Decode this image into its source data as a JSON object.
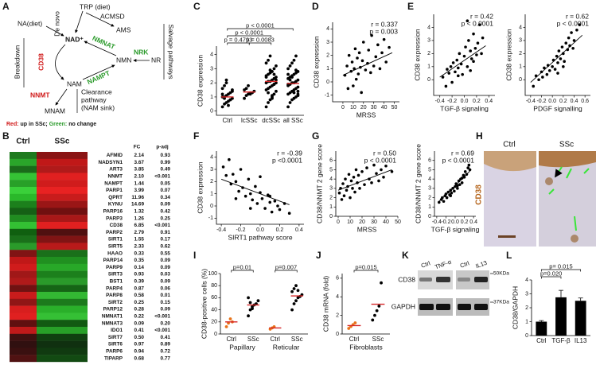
{
  "panel_labels": [
    "A",
    "B",
    "C",
    "D",
    "E",
    "F",
    "G",
    "H",
    "I",
    "J",
    "K",
    "L"
  ],
  "diagram": {
    "trp": "TRP (diet)",
    "acmsd": "ACMSD",
    "ams": "AMS",
    "de_novo": "De novo",
    "na": "NA(diet)",
    "nad": "NAD⁺",
    "nmnat": "NMNAT",
    "nrk": "NRK",
    "nmn": "NMN",
    "nr": "NR",
    "salvage": "Salvage pathways",
    "nampt": "NAMPT",
    "cd38": "CD38",
    "breakdown": "Breakdown",
    "nam": "NAM",
    "nnmt": "NNMT",
    "mnam": "MNAM",
    "clearance": [
      "Clearance",
      "pathway",
      "(NAM sink)"
    ],
    "legend": [
      "Red:",
      " up in SSc; ",
      "Green:",
      " no change"
    ]
  },
  "heatmap": {
    "columns": [
      "Ctrl",
      "SSc"
    ],
    "stat_headers": [
      "FC",
      "p-adj"
    ],
    "rows": [
      {
        "gene": "AFMID",
        "fc": "2.14",
        "p": "0.93",
        "ctrl_color": "#1e7a1e",
        "ssc_color": "#8a1414"
      },
      {
        "gene": "NADSYN1",
        "fc": "3.67",
        "p": "0.99",
        "ctrl_color": "#2aa52a",
        "ssc_color": "#c01818"
      },
      {
        "gene": "ART3",
        "fc": "3.85",
        "p": "0.49",
        "ctrl_color": "#1a6b1a",
        "ssc_color": "#b01a1a"
      },
      {
        "gene": "NNMT",
        "fc": "2.10",
        "p": "<0.001",
        "ctrl_color": "#35c235",
        "ssc_color": "#e02020"
      },
      {
        "gene": "NAMPT",
        "fc": "1.44",
        "p": "0.05",
        "ctrl_color": "#28a028",
        "ssc_color": "#d01c1c"
      },
      {
        "gene": "PARP1",
        "fc": "3.99",
        "p": "0.07",
        "ctrl_color": "#3ad03a",
        "ssc_color": "#e82222"
      },
      {
        "gene": "QPRT",
        "fc": "11.96",
        "p": "0.34",
        "ctrl_color": "#2ab82a",
        "ssc_color": "#c81c1c"
      },
      {
        "gene": "KYNU",
        "fc": "14.69",
        "p": "0.09",
        "ctrl_color": "#1c801c",
        "ssc_color": "#9a1616"
      },
      {
        "gene": "PARP16",
        "fc": "1.32",
        "p": "0.42",
        "ctrl_color": "#156015",
        "ssc_color": "#701010"
      },
      {
        "gene": "PARP3",
        "fc": "1.26",
        "p": "0.25",
        "ctrl_color": "#208c20",
        "ssc_color": "#a81818"
      },
      {
        "gene": "CD38",
        "fc": "6.85",
        "p": "<0.001",
        "ctrl_color": "#33c033",
        "ssc_color": "#e02020"
      },
      {
        "gene": "PARP2",
        "fc": "2.79",
        "p": "0.91",
        "ctrl_color": "#106010",
        "ssc_color": "#501010"
      },
      {
        "gene": "SIRT1",
        "fc": "1.55",
        "p": "0.17",
        "ctrl_color": "#1a701a",
        "ssc_color": "#801414"
      },
      {
        "gene": "SIRT5",
        "fc": "2.33",
        "p": "0.62",
        "ctrl_color": "#2a9a2a",
        "ssc_color": "#b81a1a"
      },
      {
        "gene": "HAAO",
        "fc": "0.33",
        "p": "0.55",
        "ctrl_color": "#801414",
        "ssc_color": "#1a701a"
      },
      {
        "gene": "PARP14",
        "fc": "0.35",
        "p": "0.09",
        "ctrl_color": "#c01818",
        "ssc_color": "#209020"
      },
      {
        "gene": "PARP9",
        "fc": "0.14",
        "p": "0.09",
        "ctrl_color": "#d01c1c",
        "ssc_color": "#28a828"
      },
      {
        "gene": "SIRT3",
        "fc": "0.93",
        "p": "0.03",
        "ctrl_color": "#a01818",
        "ssc_color": "#1c801c"
      },
      {
        "gene": "BST1",
        "fc": "0.39",
        "p": "0.09",
        "ctrl_color": "#b01a1a",
        "ssc_color": "#2a9a2a"
      },
      {
        "gene": "PARP4",
        "fc": "0.87",
        "p": "0.06",
        "ctrl_color": "#701212",
        "ssc_color": "#156515"
      },
      {
        "gene": "PARP8",
        "fc": "0.58",
        "p": "0.01",
        "ctrl_color": "#c81c1c",
        "ssc_color": "#33b833"
      },
      {
        "gene": "SIRT2",
        "fc": "0.25",
        "p": "0.15",
        "ctrl_color": "#901616",
        "ssc_color": "#1c7a1c"
      },
      {
        "gene": "PARP12",
        "fc": "0.28",
        "p": "0.09",
        "ctrl_color": "#d81e1e",
        "ssc_color": "#2ab02a"
      },
      {
        "gene": "NMNAT1",
        "fc": "0.22",
        "p": "<0.001",
        "ctrl_color": "#e02020",
        "ssc_color": "#35c035"
      },
      {
        "gene": "NMNAT3",
        "fc": "0.09",
        "p": "0.20",
        "ctrl_color": "#601010",
        "ssc_color": "#125a12"
      },
      {
        "gene": "IDO1",
        "fc": "0.41",
        "p": "<0.001",
        "ctrl_color": "#c01a1a",
        "ssc_color": "#28a028"
      },
      {
        "gene": "SIRT7",
        "fc": "0.50",
        "p": "0.41",
        "ctrl_color": "#401010",
        "ssc_color": "#104010"
      },
      {
        "gene": "SIRT6",
        "fc": "0.97",
        "p": "0.89",
        "ctrl_color": "#301010",
        "ssc_color": "#103010"
      },
      {
        "gene": "PARP6",
        "fc": "0.94",
        "p": "0.72",
        "ctrl_color": "#3a1010",
        "ssc_color": "#103a10"
      },
      {
        "gene": "TIPARP",
        "fc": "0.68",
        "p": "0.77",
        "ctrl_color": "#501212",
        "ssc_color": "#124a12"
      }
    ]
  },
  "histology": {
    "columns": [
      "Ctrl",
      "SSc"
    ],
    "stain": "CD38"
  },
  "blot": {
    "lanes": [
      "Ctrl",
      "TNF-α",
      "Ctrl",
      "IL13"
    ],
    "bands": [
      "CD38",
      "GAPDH"
    ],
    "markers": [
      "50KDa",
      "37KDa"
    ]
  },
  "chart_data": [
    {
      "type": "dot",
      "ylabel": "CD38 expression",
      "categories": [
        "Ctrl",
        "lcSSc",
        "dcSSc",
        "all SSc"
      ],
      "ylim": [
        -0.3,
        4.6
      ],
      "yticks": [
        0,
        1,
        2,
        3,
        4
      ],
      "color": "#000000",
      "mean_color": "#d62728",
      "points": [
        [
          0.3,
          0.5,
          0.6,
          0.7,
          0.8,
          0.9,
          1.0,
          1.0,
          1.1,
          1.2,
          1.3,
          1.4,
          1.6,
          1.8,
          2.0,
          0.4,
          0.8,
          1.5,
          1.2,
          0.9,
          2.2
        ],
        [
          0.9,
          1.1,
          1.2,
          1.3,
          1.3,
          1.4,
          1.5,
          1.6,
          1.8,
          1.2
        ],
        [
          0.3,
          0.6,
          0.8,
          1.0,
          1.2,
          1.4,
          1.5,
          1.6,
          1.7,
          1.8,
          1.9,
          2.0,
          2.0,
          2.1,
          2.1,
          2.2,
          2.3,
          2.4,
          2.5,
          2.6,
          2.7,
          2.8,
          3.0,
          3.2,
          3.4,
          3.6,
          3.9,
          1.1,
          1.9,
          2.2,
          2.4,
          1.3,
          2.9,
          0.9,
          2.6
        ],
        [
          0.3,
          0.6,
          0.8,
          0.9,
          1.0,
          1.1,
          1.2,
          1.3,
          1.4,
          1.5,
          1.6,
          1.7,
          1.8,
          1.9,
          2.0,
          2.0,
          2.1,
          2.2,
          2.3,
          2.4,
          2.5,
          2.6,
          2.7,
          2.8,
          3.0,
          3.2,
          3.4,
          3.6,
          3.9,
          1.2,
          1.9,
          2.2,
          2.4,
          1.3,
          2.9,
          1.4,
          2.6
        ]
      ],
      "means": [
        1.0,
        1.35,
        2.1,
        1.95
      ],
      "brackets": [
        {
          "label": "p = 0.4793",
          "from": 0,
          "to": 1
        },
        {
          "label": "p = 0.0083",
          "from": 1,
          "to": 2
        },
        {
          "label": "p < 0.0001",
          "from": 0,
          "to": 2
        },
        {
          "label": "p < 0.0001",
          "from": 0,
          "to": 3
        }
      ]
    },
    {
      "type": "scatter",
      "xlabel": "MRSS",
      "ylabel": "CD38 expression",
      "stats": [
        "r = 0.337",
        "p = 0.003"
      ],
      "xlim": [
        -10,
        55
      ],
      "xticks": [
        0,
        10,
        20,
        30,
        40,
        50
      ],
      "ylim": [
        -1.5,
        4.5
      ],
      "yticks": [
        -1,
        0,
        1,
        2,
        3,
        4
      ],
      "x": [
        2,
        4,
        5,
        6,
        8,
        9,
        10,
        11,
        12,
        13,
        14,
        15,
        16,
        17,
        18,
        19,
        20,
        22,
        24,
        25,
        27,
        28,
        30,
        32,
        34,
        36,
        38,
        40,
        42,
        45
      ],
      "y": [
        0.5,
        1.2,
        -0.5,
        2.0,
        0.8,
        1.5,
        -0.3,
        1.0,
        2.5,
        0.2,
        1.8,
        0.6,
        2.2,
        1.1,
        -0.8,
        1.6,
        3.0,
        0.9,
        1.4,
        2.4,
        0.7,
        3.5,
        1.2,
        1.9,
        2.8,
        1.0,
        2.2,
        3.2,
        1.5,
        2.6
      ],
      "fit": {
        "x": [
          0,
          48
        ],
        "y": [
          0.5,
          2.2
        ]
      }
    },
    {
      "type": "scatter",
      "xlabel": "TGF-β signaling",
      "ylabel": "CD38 expression",
      "stats": [
        "r = 0.42",
        "p < 0.0001"
      ],
      "xlim": [
        -0.5,
        0.5
      ],
      "xticks": [
        -0.4,
        -0.2,
        {
          "value": 0,
          "label": "0.0"
        },
        0.2,
        0.4
      ],
      "ylim": [
        -1.2,
        5
      ],
      "yticks": [
        0,
        1,
        2,
        3,
        4
      ],
      "x": [
        -0.35,
        -0.3,
        -0.28,
        -0.25,
        -0.22,
        -0.2,
        -0.18,
        -0.15,
        -0.12,
        -0.1,
        -0.08,
        -0.05,
        -0.03,
        0,
        0.02,
        0.05,
        0.07,
        0.1,
        0.12,
        0.15,
        0.18,
        0.2,
        0.22,
        0.25,
        0.28,
        0.3,
        -0.1,
        0.05,
        0.1,
        0.15
      ],
      "y": [
        0.2,
        -0.5,
        0.8,
        0.5,
        1.0,
        -0.2,
        1.3,
        0.6,
        1.5,
        0.9,
        2.0,
        1.2,
        0.4,
        1.8,
        2.5,
        1.0,
        3.0,
        2.2,
        1.6,
        3.5,
        2.4,
        1.9,
        2.8,
        4.2,
        2.0,
        3.2,
        0.3,
        4.5,
        0.7,
        1.4
      ],
      "fit": {
        "x": [
          -0.4,
          0.35
        ],
        "y": [
          0.2,
          2.6
        ]
      }
    },
    {
      "type": "scatter",
      "xlabel": "PDGF signalling",
      "ylabel": "CD38 expression",
      "stats": [
        "r = 0.62",
        "p < 0.0001"
      ],
      "xlim": [
        -0.5,
        0.7
      ],
      "xticks": [
        -0.4,
        -0.2,
        {
          "value": 0,
          "label": "0.0"
        },
        0.2,
        0.4,
        0.6
      ],
      "ylim": [
        -1.2,
        5
      ],
      "yticks": [
        0,
        1,
        2,
        3,
        4
      ],
      "x": [
        -0.35,
        -0.3,
        -0.25,
        -0.2,
        -0.18,
        -0.15,
        -0.1,
        -0.08,
        -0.05,
        0,
        0.02,
        0.05,
        0.08,
        0.1,
        0.12,
        0.15,
        0.18,
        0.2,
        0.22,
        0.25,
        0.28,
        0.3,
        0.32,
        0.35,
        0.38,
        0.4,
        0.45,
        0.5,
        0.1,
        0.2
      ],
      "y": [
        -0.5,
        0.3,
        0,
        0.6,
        0.2,
        0.9,
        0.4,
        1.1,
        0.7,
        1.0,
        1.5,
        0.8,
        1.8,
        1.3,
        2.2,
        1.6,
        2.5,
        2.0,
        1.4,
        2.8,
        2.3,
        3.2,
        2.6,
        3.6,
        2.4,
        3.0,
        3.8,
        4.2,
        0.5,
        1.0
      ],
      "fit": {
        "x": [
          -0.4,
          0.55
        ],
        "y": [
          -0.2,
          3.4
        ]
      }
    },
    {
      "type": "scatter",
      "xlabel": "SIRT1 pathway score",
      "ylabel": "CD38 expression",
      "stats": [
        "r = -0.39",
        "p <0.0001"
      ],
      "xlim": [
        -0.45,
        0.45
      ],
      "xticks": [
        -0.4,
        -0.2,
        {
          "value": 0,
          "label": "0.0"
        },
        0.2,
        0.4
      ],
      "ylim": [
        -1.5,
        4.5
      ],
      "yticks": [
        -1,
        0,
        1,
        2,
        3,
        4
      ],
      "x": [
        -0.38,
        -0.35,
        -0.32,
        -0.3,
        -0.28,
        -0.25,
        -0.22,
        -0.2,
        -0.18,
        -0.15,
        -0.12,
        -0.1,
        -0.08,
        -0.05,
        -0.03,
        0,
        0.02,
        0.05,
        0.08,
        0.1,
        0.12,
        0.15,
        0.18,
        0.2,
        0.25,
        0.3,
        -0.25,
        -0.1,
        0,
        0.1
      ],
      "y": [
        3.2,
        2.5,
        3.8,
        1.8,
        2.6,
        2.0,
        1.2,
        3.0,
        1.5,
        0.8,
        2.2,
        1.0,
        0.5,
        1.6,
        0.2,
        1.1,
        0.6,
        -0.2,
        0.9,
        0.3,
        -0.5,
        0.4,
        0.0,
        -0.3,
        0.2,
        -0.6,
        0.6,
        -0.2,
        2.4,
        0.8
      ],
      "fit": {
        "x": [
          -0.4,
          0.3
        ],
        "y": [
          2.2,
          0.1
        ]
      }
    },
    {
      "type": "scatter",
      "xlabel": "MRSS",
      "ylabel": "CD38/NNMT 2 gene score",
      "stats": [
        "r = 0.50",
        "p < 0.0001"
      ],
      "xlim": [
        -2,
        50
      ],
      "xticks": [
        0,
        10,
        20,
        30,
        40,
        50
      ],
      "ylim": [
        0,
        7
      ],
      "yticks": [
        0,
        1,
        2,
        3,
        4,
        5,
        6
      ],
      "x": [
        1,
        2,
        3,
        4,
        5,
        6,
        7,
        8,
        9,
        10,
        11,
        12,
        13,
        14,
        15,
        16,
        17,
        18,
        20,
        22,
        24,
        26,
        28,
        30,
        32,
        34,
        36,
        38,
        40,
        45
      ],
      "y": [
        2.5,
        3.0,
        1.8,
        3.5,
        2.2,
        4.0,
        2.8,
        3.2,
        4.5,
        2.0,
        3.8,
        3.0,
        4.2,
        2.6,
        5.0,
        3.6,
        4.4,
        3.0,
        4.8,
        3.4,
        5.2,
        4.0,
        3.6,
        5.5,
        4.6,
        3.8,
        5.0,
        4.2,
        5.4,
        4.8
      ],
      "fit": {
        "x": [
          0,
          45
        ],
        "y": [
          2.8,
          5.0
        ]
      }
    },
    {
      "type": "scatter",
      "xlabel": "TGF-β signaling",
      "ylabel": "CD38/NNMT 2 gene score",
      "stats": [
        "r = 0.69",
        "p < 0.0001"
      ],
      "xlim": [
        -0.45,
        0.45
      ],
      "xticks": [
        -0.4,
        -0.2,
        {
          "value": 0,
          "label": "0.0"
        },
        0.2,
        0.4
      ],
      "ylim": [
        0,
        7
      ],
      "yticks": [
        0,
        1,
        2,
        3,
        4,
        5,
        6
      ],
      "x": [
        -0.35,
        -0.3,
        -0.28,
        -0.25,
        -0.22,
        -0.2,
        -0.18,
        -0.15,
        -0.12,
        -0.1,
        -0.08,
        -0.05,
        -0.02,
        0,
        0.02,
        0.05,
        0.08,
        0.1,
        0.12,
        0.15,
        0.18,
        0.2,
        0.22,
        0.25,
        0.28,
        0.3,
        0.32,
        -0.1,
        0.05,
        0.15
      ],
      "y": [
        1.5,
        1.8,
        2.0,
        1.6,
        2.2,
        2.4,
        2.0,
        2.6,
        2.3,
        2.8,
        2.5,
        3.0,
        2.7,
        3.2,
        3.5,
        3.0,
        3.8,
        3.4,
        4.0,
        3.6,
        4.4,
        4.2,
        4.8,
        4.5,
        5.2,
        5.5,
        5.0,
        2.2,
        3.3,
        4.1
      ],
      "fit": {
        "x": [
          -0.35,
          0.35
        ],
        "y": [
          1.6,
          5.0
        ]
      }
    },
    {
      "type": "dot",
      "ylabel": "CD38-positive cells (%)",
      "categories": [
        "Ctrl",
        "SSc",
        "Ctrl",
        "SSc"
      ],
      "groups": [
        "Papillary",
        "Reticular"
      ],
      "ylim": [
        0,
        100
      ],
      "yticks": [
        0,
        20,
        40,
        60,
        80,
        100
      ],
      "colors": [
        "#e8731a",
        "#000000",
        "#e8731a",
        "#000000"
      ],
      "mean_color": "#d62728",
      "points": [
        [
          12,
          18,
          25,
          20
        ],
        [
          30,
          40,
          45,
          48,
          50,
          55,
          60,
          52,
          42
        ],
        [
          8,
          10,
          12
        ],
        [
          40,
          50,
          55,
          60,
          62,
          65,
          70,
          75,
          80,
          72
        ]
      ],
      "means": [
        20,
        48,
        10,
        63
      ],
      "brackets": [
        {
          "label": "p=0.01",
          "from": 0,
          "to": 1
        },
        {
          "label": "p=0.007",
          "from": 2,
          "to": 3
        }
      ]
    },
    {
      "type": "dot",
      "ylabel": "CD38 mRNA (fold)",
      "categories": [
        "Ctrl",
        "SSc"
      ],
      "groups": [
        "Fibroblasts"
      ],
      "ylim": [
        0,
        6.5
      ],
      "yticks": [
        0,
        2,
        4,
        6
      ],
      "colors": [
        "#e8731a",
        "#000000"
      ],
      "mean_color": "#d62728",
      "points": [
        [
          0.6,
          0.8,
          1.0,
          1.2
        ],
        [
          1.5,
          2.0,
          2.5,
          3.0,
          5.5
        ]
      ],
      "means": [
        0.9,
        3.2
      ],
      "brackets": [
        {
          "label": "p=0.015",
          "from": 0,
          "to": 1
        }
      ]
    },
    {
      "type": "bar",
      "ylabel": "CD38/GAPDH",
      "categories": [
        "Ctrl",
        "TGF-β",
        "IL13"
      ],
      "values": [
        1,
        2.75,
        2.5
      ],
      "errors": [
        0.08,
        0.5,
        0.2
      ],
      "color": "#000000",
      "ylim": [
        0,
        4
      ],
      "yticks": [
        0,
        1,
        2,
        3,
        4
      ],
      "brackets": [
        {
          "label": "p=0.020",
          "from": 0,
          "to": 1
        },
        {
          "label": "p= 0.015",
          "from": 0,
          "to": 2
        }
      ]
    }
  ]
}
